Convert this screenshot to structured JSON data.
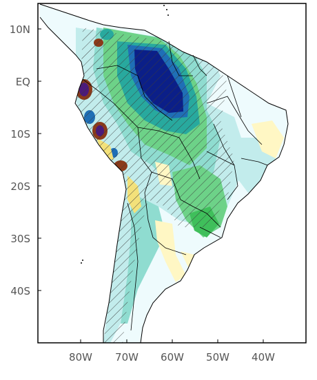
{
  "map": {
    "lat_labels": [
      "10N",
      "EQ",
      "10S",
      "20S",
      "30S",
      "40S"
    ],
    "lon_labels": [
      "80W",
      "70W",
      "60W",
      "50W",
      "40W"
    ],
    "palette": {
      "very_light": "#eefbfd",
      "light_cyan": "#c2ecec",
      "aqua": "#8fdcd0",
      "green": "#6dd288",
      "bright_green": "#3fbf5b",
      "teal": "#28a99e",
      "blue": "#1f6fb6",
      "navy": "#0b1f88",
      "pale_yellow": "#fff7c4",
      "yellow": "#f3e17a",
      "brown": "#8b3a1a",
      "purple": "#4b1a7a",
      "hatch": "#3b3b3b",
      "border": "#000000"
    }
  }
}
